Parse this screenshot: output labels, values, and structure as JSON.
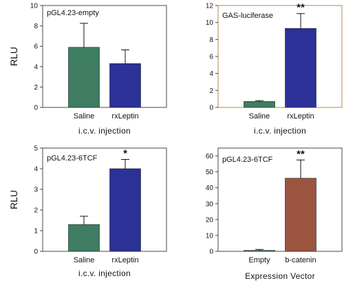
{
  "chart_data": [
    {
      "type": "bar",
      "title": "pGL4.23-empty",
      "ylabel": "RLU",
      "xlabel": "i.c.v. injection",
      "ylim": [
        0,
        10
      ],
      "yticks": [
        "0",
        "2",
        "4",
        "6",
        "8",
        "10"
      ],
      "categories": [
        "Saline",
        "rxLeptin"
      ],
      "values": [
        5.9,
        4.3
      ],
      "errors": [
        2.35,
        1.35
      ],
      "significance": [
        "",
        ""
      ],
      "colors": [
        "#3f7d62",
        "#2b3196"
      ],
      "frame_color": "#444444",
      "grid": false
    },
    {
      "type": "bar",
      "title": "GAS-luciferase",
      "ylabel": "",
      "xlabel": "i.c.v. injection",
      "ylim": [
        0,
        12
      ],
      "yticks": [
        "0",
        "2",
        "4",
        "6",
        "8",
        "10",
        "12"
      ],
      "categories": [
        "Saline",
        "rxLeptin"
      ],
      "values": [
        0.7,
        9.3
      ],
      "errors": [
        0.1,
        1.75
      ],
      "significance": [
        "",
        "**"
      ],
      "colors": [
        "#3f7d62",
        "#2b3196"
      ],
      "frame_color": "#b08a4a",
      "grid": false
    },
    {
      "type": "bar",
      "title": "pGL4.23-6TCF",
      "ylabel": "RLU",
      "xlabel": "i.c.v. injection",
      "ylim": [
        0,
        5
      ],
      "yticks": [
        "0",
        "1",
        "2",
        "3",
        "4",
        "5"
      ],
      "categories": [
        "Saline",
        "rxLeptin"
      ],
      "values": [
        1.3,
        4.0
      ],
      "errors": [
        0.4,
        0.45
      ],
      "significance": [
        "",
        "*"
      ],
      "colors": [
        "#3f7d62",
        "#2b3196"
      ],
      "frame_color": "#444444",
      "grid": false
    },
    {
      "type": "bar",
      "title": "pGL4.23-6TCF",
      "ylabel": "",
      "xlabel": "Expression Vector",
      "ylim": [
        0,
        65
      ],
      "yticks": [
        "0",
        "10",
        "20",
        "30",
        "40",
        "50",
        "60"
      ],
      "categories": [
        "Empty",
        "b-catenin"
      ],
      "values": [
        0.6,
        46.0
      ],
      "errors": [
        0.6,
        11.5
      ],
      "significance": [
        "",
        "**"
      ],
      "colors": [
        "#3f7d62",
        "#9b5440"
      ],
      "frame_color": "#444444",
      "grid": false
    }
  ]
}
